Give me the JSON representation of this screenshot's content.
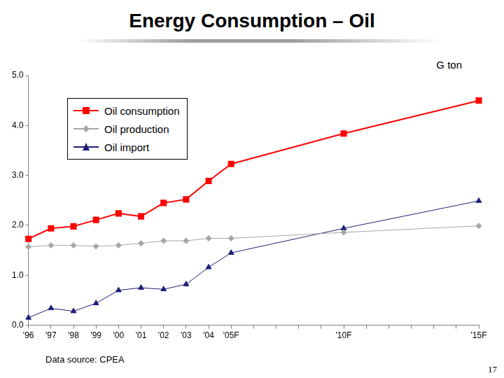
{
  "chart_data": {
    "type": "line",
    "title": "Energy Consumption – Oil",
    "ylabel": "G ton",
    "source": "Data source: CPEA",
    "page_number": "17",
    "categories": [
      "'96",
      "'97",
      "'98",
      "'99",
      "'00",
      "'01",
      "'02",
      "'03",
      "'04",
      "'05F",
      null,
      null,
      null,
      null,
      "'10F",
      null,
      null,
      null,
      null,
      null,
      "'15F"
    ],
    "series": [
      {
        "name": "Oil consumption",
        "color": "#ff0000",
        "marker": "square",
        "values": [
          1.73,
          1.94,
          1.98,
          2.11,
          2.24,
          2.18,
          2.45,
          2.52,
          2.89,
          3.23,
          null,
          null,
          null,
          null,
          3.84,
          null,
          null,
          null,
          null,
          null,
          4.5
        ]
      },
      {
        "name": "Oil production",
        "color": "#a6a6a6",
        "marker": "diamond",
        "values": [
          1.57,
          1.6,
          1.6,
          1.58,
          1.6,
          1.64,
          1.69,
          1.69,
          1.74,
          1.74,
          null,
          null,
          null,
          null,
          1.86,
          null,
          null,
          null,
          null,
          null,
          1.99
        ]
      },
      {
        "name": "Oil import",
        "color": "#1f1f7a",
        "marker": "triangle",
        "values": [
          0.15,
          0.34,
          0.28,
          0.44,
          0.7,
          0.75,
          0.72,
          0.82,
          1.16,
          1.45,
          null,
          null,
          null,
          null,
          1.94,
          null,
          null,
          null,
          null,
          null,
          2.49
        ]
      }
    ],
    "ylim": [
      0,
      5
    ],
    "yticks": [
      {
        "value": 0,
        "label": "0.0"
      },
      {
        "value": 1,
        "label": "1.0"
      },
      {
        "value": 2,
        "label": "2.0"
      },
      {
        "value": 3,
        "label": "3.0"
      },
      {
        "value": 4,
        "label": "4.0"
      },
      {
        "value": 5,
        "label": "5.0"
      }
    ],
    "grid": false,
    "legend": "upper left"
  }
}
